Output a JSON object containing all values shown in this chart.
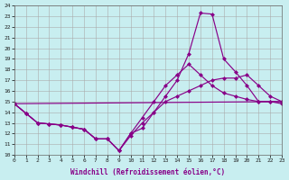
{
  "xlabel": "Windchill (Refroidissement éolien,°C)",
  "bg_color": "#c8eef0",
  "line_color": "#880088",
  "xlim": [
    0,
    23
  ],
  "ylim": [
    10,
    24
  ],
  "xticks": [
    0,
    1,
    2,
    3,
    4,
    5,
    6,
    7,
    8,
    9,
    10,
    11,
    12,
    13,
    14,
    15,
    16,
    17,
    18,
    19,
    20,
    21,
    22,
    23
  ],
  "yticks": [
    10,
    11,
    12,
    13,
    14,
    15,
    16,
    17,
    18,
    19,
    20,
    21,
    22,
    23,
    24
  ],
  "line1_x": [
    0,
    1,
    2,
    3,
    4,
    5,
    6,
    7,
    8,
    9,
    10,
    11,
    12,
    13,
    14,
    15,
    16,
    17,
    18,
    19,
    20,
    21,
    22,
    23
  ],
  "line1_y": [
    14.8,
    13.9,
    13.0,
    12.9,
    12.8,
    12.6,
    12.4,
    11.5,
    11.5,
    10.4,
    12.0,
    12.5,
    14.0,
    15.5,
    17.0,
    19.5,
    23.3,
    23.2,
    19.0,
    17.8,
    16.5,
    15.0,
    15.0,
    14.8
  ],
  "line2_x": [
    0,
    1,
    2,
    3,
    4,
    5,
    6,
    7,
    8,
    9,
    10,
    11,
    12,
    13,
    14,
    15,
    16,
    17,
    18,
    19,
    20,
    21,
    22,
    23
  ],
  "line2_y": [
    14.8,
    13.9,
    13.0,
    12.9,
    12.8,
    12.6,
    12.4,
    11.5,
    11.5,
    10.4,
    12.0,
    13.5,
    15.0,
    16.5,
    17.5,
    18.5,
    17.5,
    16.5,
    15.8,
    15.5,
    15.2,
    15.0,
    15.0,
    15.0
  ],
  "line3_x": [
    0,
    1,
    2,
    3,
    4,
    5,
    6,
    7,
    8,
    9,
    10,
    11,
    12,
    13,
    14,
    15,
    16,
    17,
    18,
    19,
    20,
    21,
    22,
    23
  ],
  "line3_y": [
    14.8,
    13.9,
    13.0,
    12.9,
    12.8,
    12.6,
    12.4,
    11.5,
    11.5,
    10.4,
    11.8,
    13.0,
    14.0,
    15.0,
    15.5,
    16.0,
    16.5,
    17.0,
    17.2,
    17.2,
    17.5,
    16.5,
    15.5,
    15.0
  ],
  "line4_x": [
    0,
    23
  ],
  "line4_y": [
    14.8,
    15.0
  ],
  "marker_size": 2.5,
  "linewidth": 0.85
}
